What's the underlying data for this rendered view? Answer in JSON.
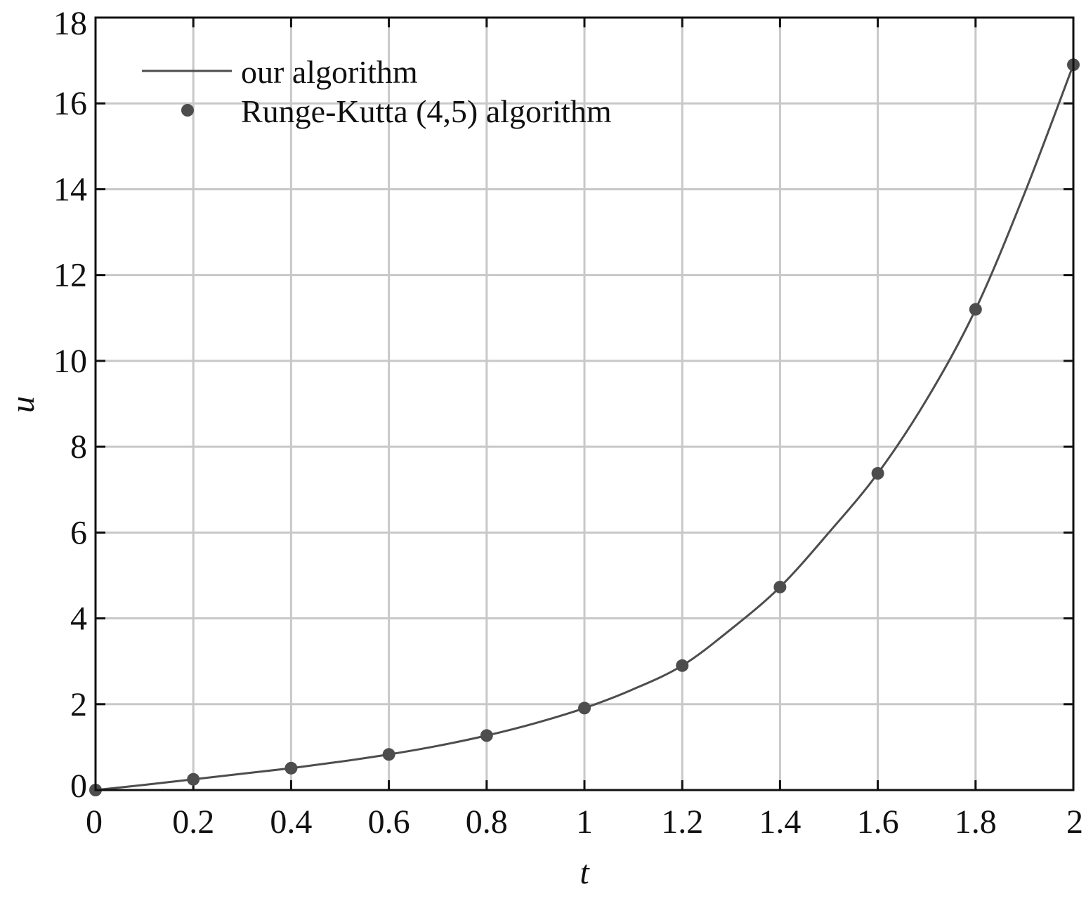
{
  "chart_data": {
    "type": "line",
    "title": "",
    "xlabel": "t",
    "ylabel": "u",
    "xlim": [
      0,
      2
    ],
    "ylim": [
      0,
      18
    ],
    "xticks": [
      0,
      0.2,
      0.4,
      0.6,
      0.8,
      1,
      1.2,
      1.4,
      1.6,
      1.8,
      2
    ],
    "xtick_labels": [
      "0",
      "0.2",
      "0.4",
      "0.6",
      "0.8",
      "1",
      "1.2",
      "1.4",
      "1.6",
      "1.8",
      "2"
    ],
    "yticks": [
      0,
      2,
      4,
      6,
      8,
      10,
      12,
      14,
      16,
      18
    ],
    "ytick_labels": [
      "0",
      "2",
      "4",
      "6",
      "8",
      "10",
      "12",
      "14",
      "16",
      "18"
    ],
    "grid": true,
    "legend_position": "top-left",
    "series": [
      {
        "name": "our algorithm",
        "style": "line",
        "color": "#4d4d4d",
        "x": [
          0,
          0.1,
          0.2,
          0.3,
          0.4,
          0.5,
          0.6,
          0.7,
          0.8,
          0.9,
          1.0,
          1.1,
          1.2,
          1.3,
          1.4,
          1.5,
          1.6,
          1.7,
          1.8,
          1.9,
          2.0
        ],
        "y": [
          0,
          0.12,
          0.25,
          0.38,
          0.51,
          0.66,
          0.83,
          1.03,
          1.27,
          1.56,
          1.91,
          2.35,
          2.9,
          3.75,
          4.73,
          6.0,
          7.38,
          9.1,
          11.2,
          13.9,
          16.9
        ]
      },
      {
        "name": "Runge-Kutta (4,5) algorithm",
        "style": "markers",
        "color": "#4d4d4d",
        "x": [
          0,
          0.2,
          0.4,
          0.6,
          0.8,
          1.0,
          1.2,
          1.4,
          1.6,
          1.8,
          2.0
        ],
        "y": [
          0,
          0.25,
          0.51,
          0.83,
          1.27,
          1.91,
          2.9,
          4.73,
          7.38,
          11.2,
          16.9
        ]
      }
    ]
  }
}
